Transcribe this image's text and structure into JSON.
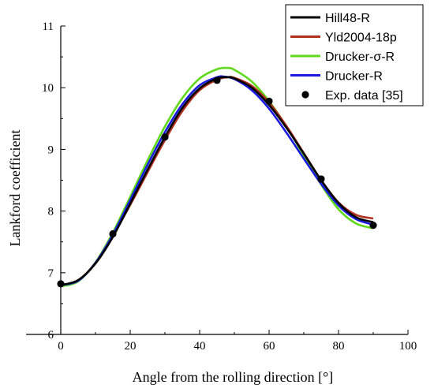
{
  "chart_data": {
    "type": "line",
    "xlabel": "Angle from the rolling direction [°]",
    "ylabel": "Lankford coefficient",
    "xlim": [
      -10,
      100
    ],
    "ylim": [
      6,
      11
    ],
    "xticks": [
      0,
      20,
      40,
      60,
      80,
      100
    ],
    "yticks": [
      6,
      7,
      8,
      9,
      10,
      11
    ],
    "grid": false,
    "legend_position": "top-right",
    "series": [
      {
        "name": "Hill48-R",
        "color": "#000000",
        "x": [
          0,
          5,
          10,
          15,
          20,
          25,
          30,
          35,
          40,
          45,
          48,
          50,
          55,
          60,
          65,
          70,
          75,
          80,
          85,
          90
        ],
        "y": [
          6.8,
          6.88,
          7.15,
          7.58,
          8.12,
          8.67,
          9.2,
          9.67,
          9.99,
          10.15,
          10.17,
          10.15,
          10.0,
          9.72,
          9.35,
          8.93,
          8.5,
          8.13,
          7.9,
          7.82
        ]
      },
      {
        "name": "Yld2004-18p",
        "color": "#b03020",
        "x": [
          0,
          5,
          10,
          15,
          20,
          25,
          30,
          35,
          40,
          45,
          48,
          50,
          55,
          60,
          65,
          70,
          75,
          80,
          85,
          90
        ],
        "y": [
          6.8,
          6.88,
          7.16,
          7.6,
          8.1,
          8.63,
          9.15,
          9.62,
          9.96,
          10.13,
          10.17,
          10.16,
          10.03,
          9.76,
          9.38,
          8.94,
          8.5,
          8.14,
          7.94,
          7.88
        ]
      },
      {
        "name": "Drucker-σ-R",
        "color": "#5fd91a",
        "x": [
          0,
          5,
          10,
          15,
          20,
          25,
          30,
          35,
          40,
          45,
          48,
          50,
          55,
          60,
          65,
          70,
          75,
          80,
          85,
          90
        ],
        "y": [
          6.78,
          6.86,
          7.17,
          7.65,
          8.23,
          8.82,
          9.37,
          9.83,
          10.15,
          10.3,
          10.32,
          10.29,
          10.1,
          9.78,
          9.37,
          8.9,
          8.43,
          8.03,
          7.8,
          7.72
        ]
      },
      {
        "name": "Drucker-R",
        "color": "#1a1ae0",
        "x": [
          0,
          5,
          10,
          15,
          20,
          25,
          30,
          35,
          40,
          45,
          47,
          50,
          55,
          60,
          65,
          70,
          75,
          80,
          85,
          90
        ],
        "y": [
          6.8,
          6.87,
          7.16,
          7.62,
          8.18,
          8.75,
          9.28,
          9.73,
          10.04,
          10.17,
          10.18,
          10.14,
          9.96,
          9.66,
          9.27,
          8.85,
          8.44,
          8.09,
          7.87,
          7.78
        ]
      }
    ],
    "points": {
      "name": "Exp. data [35]",
      "color": "#000000",
      "x": [
        0,
        15,
        30,
        45,
        60,
        75,
        90
      ],
      "y": [
        6.82,
        7.63,
        9.2,
        10.12,
        9.78,
        8.52,
        7.77
      ]
    }
  }
}
